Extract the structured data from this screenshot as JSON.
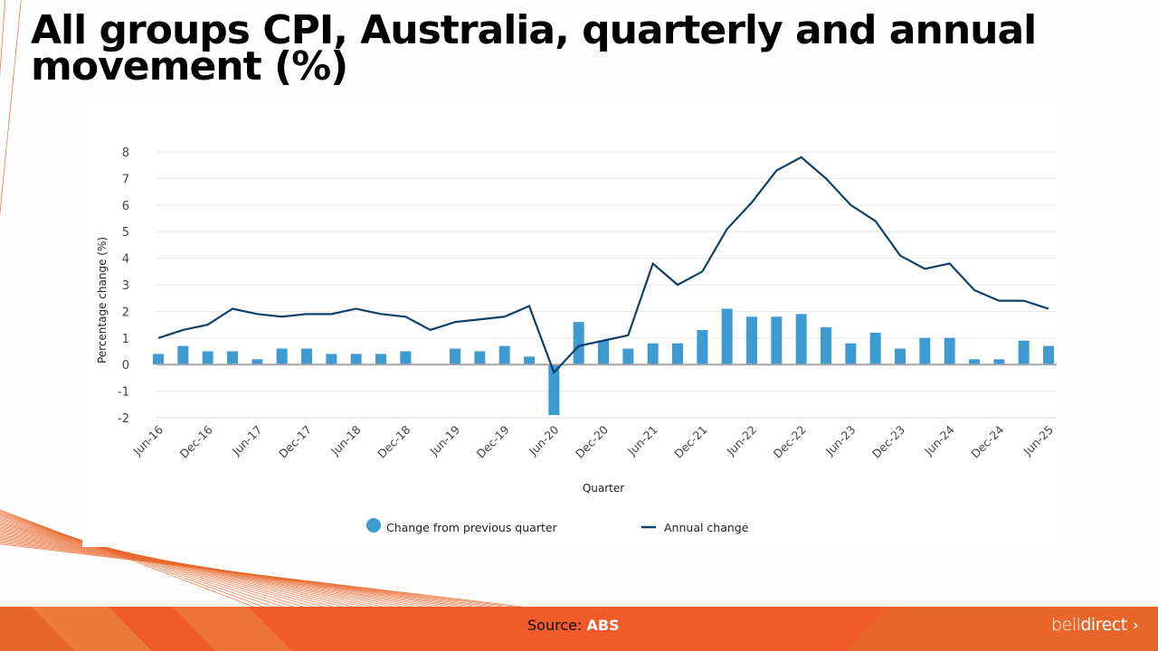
{
  "slide": {
    "title_line1": "All groups CPI, Australia, quarterly and annual",
    "title_line2": "movement (%)",
    "source_label": "Source:",
    "source_value": "ABS",
    "logo_part1": "bell",
    "logo_part2": "direct",
    "logo_chevron": "›"
  },
  "colors": {
    "accent": "#e8662a",
    "bar": "#3d9bd1",
    "line": "#0d4168",
    "zero_line": "#a6a6a6",
    "grid": "#e6e6e6"
  },
  "chart_data": {
    "type": "bar+line",
    "title": "All groups CPI, Australia, quarterly and annual movement (%)",
    "xlabel": "Quarter",
    "ylabel": "Percentage change (%)",
    "ylim": [
      -2,
      8
    ],
    "yticks": [
      8,
      7,
      6,
      5,
      4,
      3,
      2,
      1,
      0,
      -1,
      -2
    ],
    "grid": true,
    "legend_position": "bottom",
    "categories": [
      "Jun-16",
      "Sep-16",
      "Dec-16",
      "Mar-17",
      "Jun-17",
      "Sep-17",
      "Dec-17",
      "Mar-18",
      "Jun-18",
      "Sep-18",
      "Dec-18",
      "Mar-19",
      "Jun-19",
      "Sep-19",
      "Dec-19",
      "Mar-20",
      "Jun-20",
      "Sep-20",
      "Dec-20",
      "Mar-21",
      "Jun-21",
      "Sep-21",
      "Dec-21",
      "Mar-22",
      "Jun-22",
      "Sep-22",
      "Dec-22",
      "Mar-23",
      "Jun-23",
      "Sep-23",
      "Dec-23",
      "Mar-24",
      "Jun-24",
      "Sep-24",
      "Dec-24",
      "Mar-25",
      "Jun-25"
    ],
    "xtick_labels": [
      "Jun-16",
      "Dec-16",
      "Jun-17",
      "Dec-17",
      "Jun-18",
      "Dec-18",
      "Jun-19",
      "Dec-19",
      "Jun-20",
      "Dec-20",
      "Jun-21",
      "Dec-21",
      "Jun-22",
      "Dec-22",
      "Jun-23",
      "Dec-23",
      "Jun-24",
      "Dec-24",
      "Jun-25"
    ],
    "series": [
      {
        "name": "Change from previous quarter",
        "type": "bar",
        "values": [
          0.4,
          0.7,
          0.5,
          0.5,
          0.2,
          0.6,
          0.6,
          0.4,
          0.4,
          0.4,
          0.5,
          0.0,
          0.6,
          0.5,
          0.7,
          0.3,
          -1.9,
          1.6,
          0.9,
          0.6,
          0.8,
          0.8,
          1.3,
          2.1,
          1.8,
          1.8,
          1.9,
          1.4,
          0.8,
          1.2,
          0.6,
          1.0,
          1.0,
          0.2,
          0.2,
          0.9,
          0.7
        ]
      },
      {
        "name": "Annual change",
        "type": "line",
        "values": [
          1.0,
          1.3,
          1.5,
          2.1,
          1.9,
          1.8,
          1.9,
          1.9,
          2.1,
          1.9,
          1.8,
          1.3,
          1.6,
          1.7,
          1.8,
          2.2,
          -0.3,
          0.7,
          0.9,
          1.1,
          3.8,
          3.0,
          3.5,
          5.1,
          6.1,
          7.3,
          7.8,
          7.0,
          6.0,
          5.4,
          4.1,
          3.6,
          3.8,
          2.8,
          2.4,
          2.4,
          2.1
        ]
      }
    ]
  }
}
